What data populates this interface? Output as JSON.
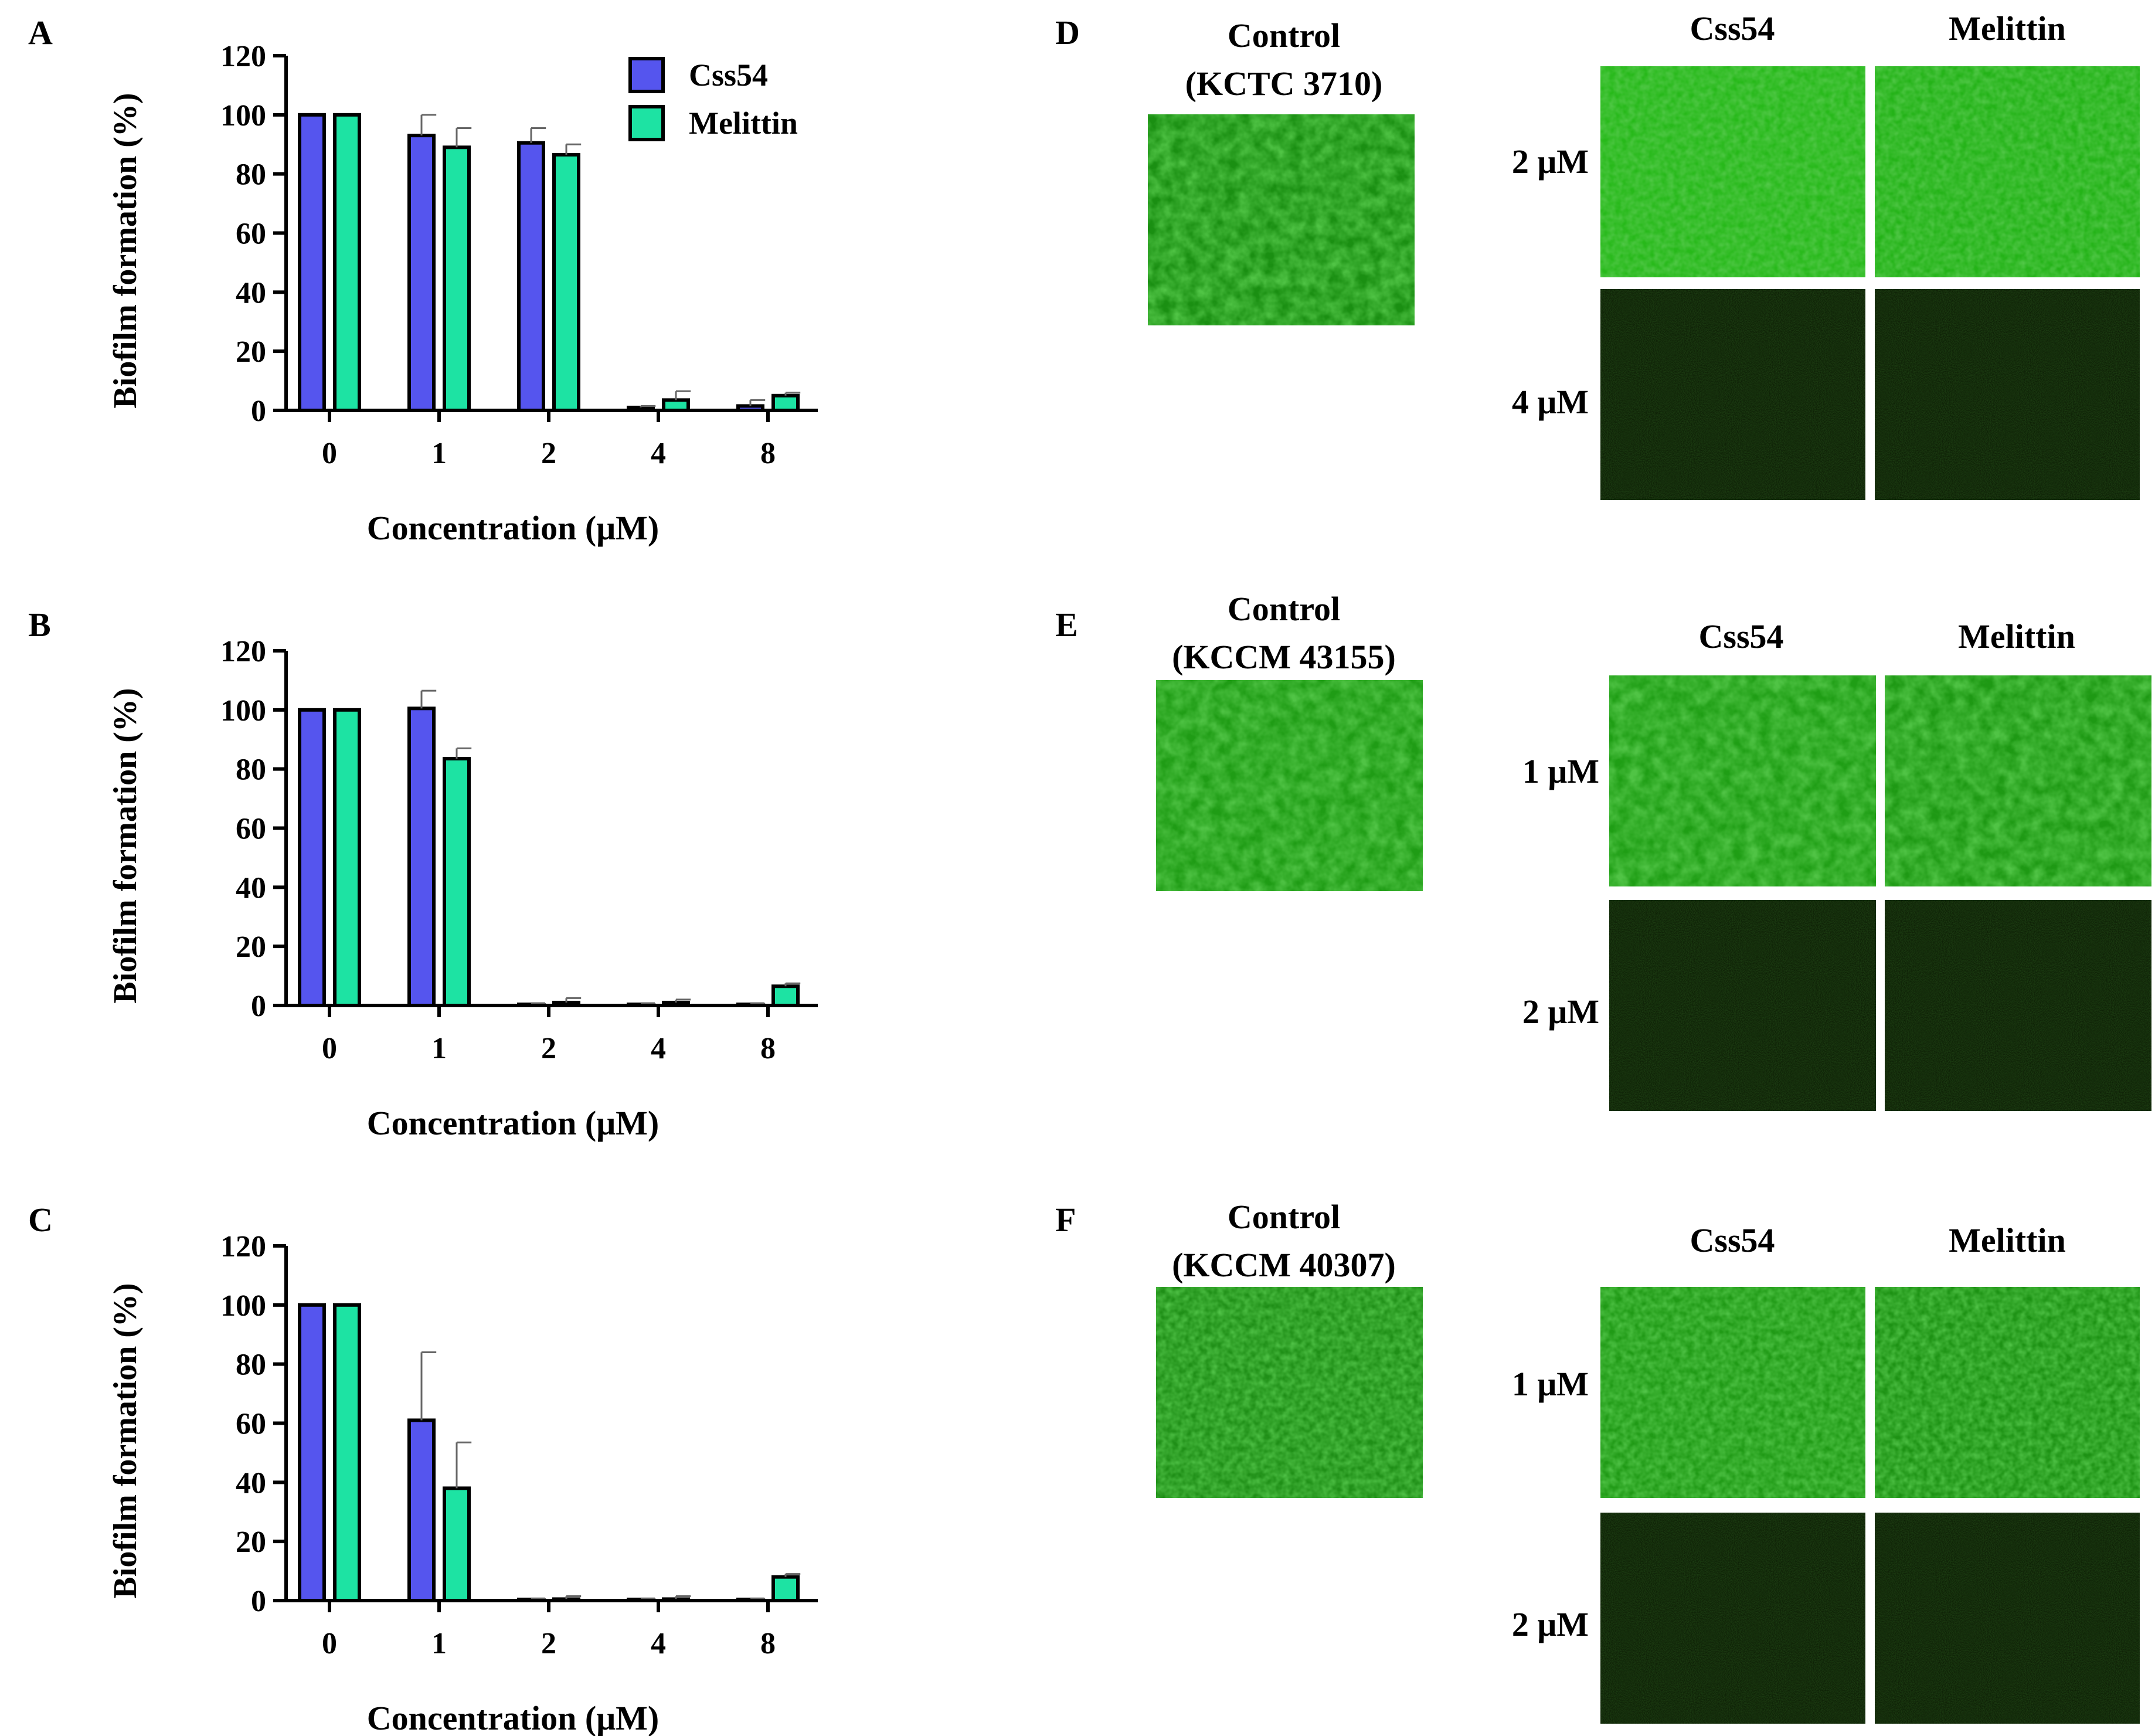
{
  "panel_letters": [
    "A",
    "B",
    "C",
    "D",
    "E",
    "F"
  ],
  "legend": {
    "series": [
      "Css54",
      "Melittin"
    ]
  },
  "colors": {
    "Css54": "#5555ee",
    "Melittin": "#1de3a3",
    "fluor": "#22c91e",
    "dark": "#0d1f05"
  },
  "chart_data": [
    {
      "panel": "A",
      "type": "bar",
      "categories": [
        "0",
        "1",
        "2",
        "4",
        "8"
      ],
      "ylabel": "Biofilm formation  (%)",
      "xlabel": "Concentration  (μM)",
      "ylim": [
        0,
        120
      ],
      "yticks": [
        "0",
        "20",
        "40",
        "60",
        "80",
        "100",
        "120"
      ],
      "series": [
        {
          "name": "Css54",
          "values": [
            100,
            93,
            90.5,
            1,
            1.5
          ],
          "errors": [
            0,
            7,
            5,
            0.5,
            2
          ]
        },
        {
          "name": "Melittin",
          "values": [
            100,
            89,
            86.5,
            3.5,
            5
          ],
          "errors": [
            0,
            6.5,
            3.5,
            3,
            1
          ]
        }
      ]
    },
    {
      "panel": "B",
      "type": "bar",
      "categories": [
        "0",
        "1",
        "2",
        "4",
        "8"
      ],
      "ylabel": "Biofilm formation  (%)",
      "xlabel": "Concentration  (μM)",
      "ylim": [
        0,
        120
      ],
      "yticks": [
        "0",
        "20",
        "40",
        "60",
        "80",
        "100",
        "120"
      ],
      "series": [
        {
          "name": "Css54",
          "values": [
            100,
            100.5,
            0,
            0,
            0
          ],
          "errors": [
            0,
            6,
            0.5,
            0.5,
            0.5
          ]
        },
        {
          "name": "Melittin",
          "values": [
            100,
            83.5,
            1,
            1,
            6.5
          ],
          "errors": [
            0,
            3.5,
            1.5,
            1,
            1
          ]
        }
      ]
    },
    {
      "panel": "C",
      "type": "bar",
      "categories": [
        "0",
        "1",
        "2",
        "4",
        "8"
      ],
      "ylabel": "Biofilm formation  (%)",
      "xlabel": "Concentration  (μM)",
      "ylim": [
        0,
        120
      ],
      "yticks": [
        "0",
        "20",
        "40",
        "60",
        "80",
        "100",
        "120"
      ],
      "series": [
        {
          "name": "Css54",
          "values": [
            100,
            61,
            0,
            0,
            0
          ],
          "errors": [
            0,
            23,
            0.5,
            0.5,
            0.5
          ]
        },
        {
          "name": "Melittin",
          "values": [
            100,
            38,
            0.5,
            0.5,
            8
          ],
          "errors": [
            0,
            15.5,
            1,
            1,
            1
          ]
        }
      ]
    }
  ],
  "micrographs": [
    {
      "panel": "D",
      "control_label": [
        "Control",
        "(KCTC 3710)"
      ],
      "columns": [
        "Css54",
        "Melittin"
      ],
      "rows": [
        {
          "label": "2 μM",
          "state": "biofilm"
        },
        {
          "label": "4 μM",
          "state": "dark"
        }
      ]
    },
    {
      "panel": "E",
      "control_label": [
        "Control",
        "(KCCM 43155)"
      ],
      "columns": [
        "Css54",
        "Melittin"
      ],
      "rows": [
        {
          "label": "1 μM",
          "state": "biofilm"
        },
        {
          "label": "2 μM",
          "state": "dark"
        }
      ]
    },
    {
      "panel": "F",
      "control_label": [
        "Control",
        "(KCCM 40307)"
      ],
      "columns": [
        "Css54",
        "Melittin"
      ],
      "rows": [
        {
          "label": "1 μM",
          "state": "biofilm"
        },
        {
          "label": "2 μM",
          "state": "dark"
        }
      ]
    }
  ]
}
